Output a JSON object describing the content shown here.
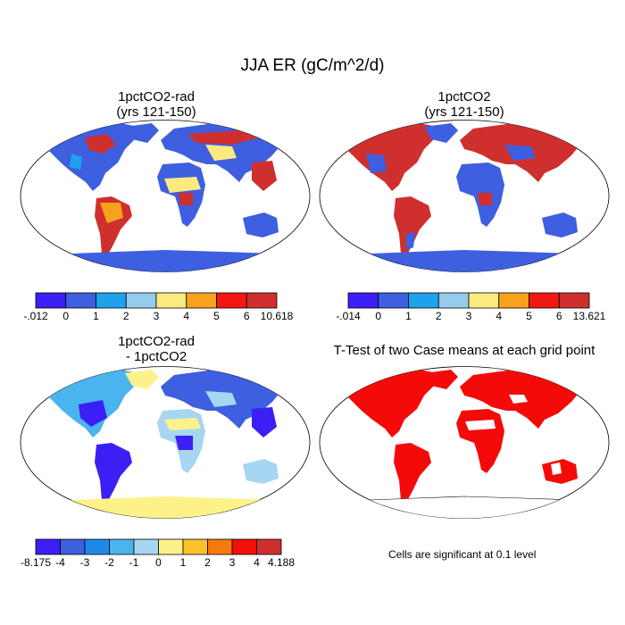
{
  "title": "JJA ER (gC/m^2/d)",
  "panels": [
    {
      "id": "p1",
      "line1": "1pctCO2-rad",
      "line2": "(yrs 121-150)"
    },
    {
      "id": "p2",
      "line1": "1pctCO2",
      "line2": "(yrs 121-150)"
    },
    {
      "id": "p3",
      "line1": "1pctCO2-rad",
      "line2": "- 1pctCO2"
    },
    {
      "id": "p4",
      "line1": "T-Test of two Case means at each grid point",
      "line2": ""
    }
  ],
  "colorbars": [
    {
      "colors": [
        "#3b1ff5",
        "#3d5fe0",
        "#1ea2ec",
        "#96cbec",
        "#fbeb7e",
        "#f7a21c",
        "#f21812",
        "#cf2f2d"
      ],
      "labels": [
        "-.012",
        "0",
        "1",
        "2",
        "3",
        "4",
        "5",
        "6",
        "10.618"
      ]
    },
    {
      "colors": [
        "#3b1ff5",
        "#3d5fe0",
        "#1ea2ec",
        "#96cbec",
        "#fbeb7e",
        "#f7a21c",
        "#f21812",
        "#cf2f2d"
      ],
      "labels": [
        "-.014",
        "0",
        "1",
        "2",
        "3",
        "4",
        "5",
        "6",
        "13.621"
      ]
    },
    {
      "colors": [
        "#3b1ff5",
        "#3d5fe0",
        "#1f89ea",
        "#4ab4ee",
        "#a6d6f2",
        "#fdf28a",
        "#f9c22a",
        "#f77a0e",
        "#f2100a",
        "#cf2f2d"
      ],
      "labels": [
        "-8.175",
        "-4",
        "-3",
        "-2",
        "-1",
        "0",
        "1",
        "2",
        "3",
        "4",
        "4.188"
      ]
    }
  ],
  "significance_note": "Cells are significant at 0.1 level",
  "palette": {
    "significant": "#f50a0a"
  }
}
